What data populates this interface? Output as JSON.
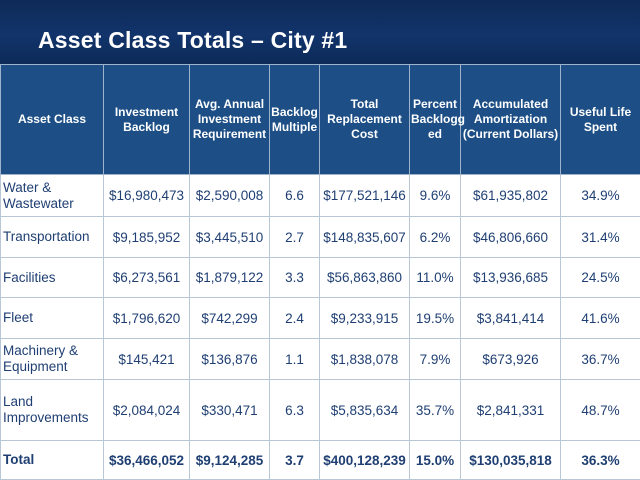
{
  "slide": {
    "title": "Asset Class Totals – City #1"
  },
  "table": {
    "headers": [
      "Asset Class",
      "Investment Backlog",
      "Avg. Annual Investment Requirement",
      "Backlog Multiple",
      "Total Replacement Cost",
      "Percent Backlogg ed",
      "Accumulated Amortization (Current Dollars)",
      "Useful Life Spent"
    ],
    "rows": [
      [
        "Water & Wastewater",
        "$16,980,473",
        "$2,590,008",
        "6.6",
        "$177,521,146",
        "9.6%",
        "$61,935,802",
        "34.9%"
      ],
      [
        "Transportation",
        "$9,185,952",
        "$3,445,510",
        "2.7",
        "$148,835,607",
        "6.2%",
        "$46,806,660",
        "31.4%"
      ],
      [
        "Facilities",
        "$6,273,561",
        "$1,879,122",
        "3.3",
        "$56,863,860",
        "11.0%",
        "$13,936,685",
        "24.5%"
      ],
      [
        "Fleet",
        "$1,796,620",
        "$742,299",
        "2.4",
        "$9,233,915",
        "19.5%",
        "$3,841,414",
        "41.6%"
      ],
      [
        "Machinery & Equipment",
        "$145,421",
        "$136,876",
        "1.1",
        "$1,838,078",
        "7.9%",
        "$673,926",
        "36.7%"
      ],
      [
        "Land Improvements",
        "$2,084,024",
        "$330,471",
        "6.3",
        "$5,835,634",
        "35.7%",
        "$2,841,331",
        "48.7%"
      ]
    ],
    "total": [
      "Total",
      "$36,466,052",
      "$9,124,285",
      "3.7",
      "$400,128,239",
      "15.0%",
      "$130,035,818",
      "36.3%"
    ]
  }
}
